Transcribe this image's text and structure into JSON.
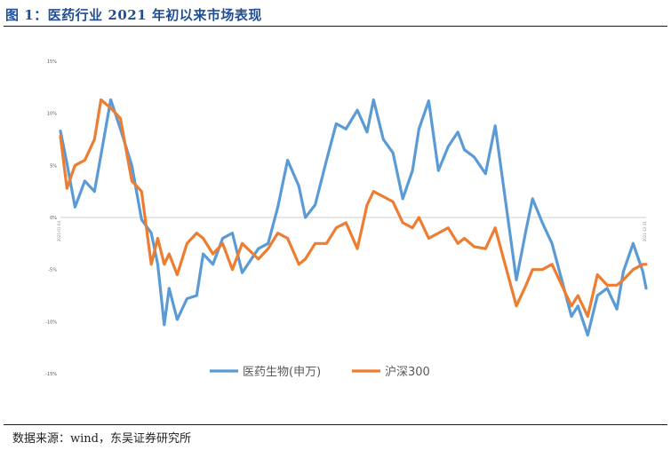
{
  "header": {
    "title": "图 1：医药行业 2021 年初以来市场表现"
  },
  "footer": {
    "source": "数据来源：wind，东吴证券研究所"
  },
  "chart_data": {
    "type": "line",
    "title": "",
    "xlabel": "",
    "ylabel": "",
    "ylim": [
      -0.15,
      0.15
    ],
    "y_ticks": [
      "15%",
      "10%",
      "5%",
      "0%",
      "-5%",
      "-10%",
      "-15%"
    ],
    "y_tick_values": [
      0.15,
      0.1,
      0.05,
      0.0,
      -0.05,
      -0.1,
      -0.15
    ],
    "x_range": [
      "2021-01-04",
      "2021-12-31"
    ],
    "x_tick_labels": [
      "2021-01-04",
      "2021-12-31"
    ],
    "grid": false,
    "legend_position": "bottom",
    "colors": {
      "series1": "#5b9bd5",
      "series2": "#ed7d31"
    },
    "series": [
      {
        "name": "医药生物(申万)",
        "x": [
          "2021-01-04",
          "2021-01-08",
          "2021-01-13",
          "2021-01-19",
          "2021-01-25",
          "2021-01-29",
          "2021-02-04",
          "2021-02-10",
          "2021-02-17",
          "2021-02-23",
          "2021-03-01",
          "2021-03-05",
          "2021-03-09",
          "2021-03-12",
          "2021-03-17",
          "2021-03-23",
          "2021-03-29",
          "2021-04-02",
          "2021-04-08",
          "2021-04-14",
          "2021-04-20",
          "2021-04-26",
          "2021-05-06",
          "2021-05-12",
          "2021-05-18",
          "2021-05-24",
          "2021-05-31",
          "2021-06-04",
          "2021-06-10",
          "2021-06-17",
          "2021-06-23",
          "2021-06-29",
          "2021-07-06",
          "2021-07-12",
          "2021-07-16",
          "2021-07-22",
          "2021-07-28",
          "2021-08-03",
          "2021-08-09",
          "2021-08-13",
          "2021-08-19",
          "2021-08-25",
          "2021-08-31",
          "2021-09-06",
          "2021-09-10",
          "2021-09-16",
          "2021-09-23",
          "2021-09-29",
          "2021-10-12",
          "2021-10-18",
          "2021-10-22",
          "2021-10-28",
          "2021-11-03",
          "2021-11-09",
          "2021-11-15",
          "2021-11-19",
          "2021-11-25",
          "2021-12-01",
          "2021-12-07",
          "2021-12-13",
          "2021-12-17",
          "2021-12-23",
          "2021-12-29",
          "2021-12-31"
        ],
        "values": [
          0.083,
          0.052,
          0.01,
          0.035,
          0.025,
          0.06,
          0.113,
          0.085,
          0.05,
          -0.002,
          -0.015,
          -0.045,
          -0.103,
          -0.068,
          -0.098,
          -0.078,
          -0.075,
          -0.035,
          -0.045,
          -0.02,
          -0.015,
          -0.053,
          -0.03,
          -0.025,
          0.01,
          0.055,
          0.03,
          0.0,
          0.012,
          0.055,
          0.09,
          0.085,
          0.103,
          0.082,
          0.113,
          0.075,
          0.062,
          0.018,
          0.045,
          0.085,
          0.112,
          0.045,
          0.068,
          0.082,
          0.065,
          0.058,
          0.042,
          0.088,
          -0.06,
          -0.012,
          0.018,
          -0.005,
          -0.025,
          -0.06,
          -0.095,
          -0.085,
          -0.113,
          -0.075,
          -0.068,
          -0.088,
          -0.052,
          -0.025,
          -0.052,
          -0.068
        ]
      },
      {
        "name": "沪深300",
        "x": [
          "2021-01-04",
          "2021-01-08",
          "2021-01-13",
          "2021-01-19",
          "2021-01-25",
          "2021-01-29",
          "2021-02-04",
          "2021-02-10",
          "2021-02-17",
          "2021-02-23",
          "2021-03-01",
          "2021-03-05",
          "2021-03-09",
          "2021-03-12",
          "2021-03-17",
          "2021-03-23",
          "2021-03-29",
          "2021-04-02",
          "2021-04-08",
          "2021-04-14",
          "2021-04-20",
          "2021-04-26",
          "2021-05-06",
          "2021-05-12",
          "2021-05-18",
          "2021-05-24",
          "2021-05-31",
          "2021-06-04",
          "2021-06-10",
          "2021-06-17",
          "2021-06-23",
          "2021-06-29",
          "2021-07-06",
          "2021-07-12",
          "2021-07-16",
          "2021-07-22",
          "2021-07-28",
          "2021-08-03",
          "2021-08-09",
          "2021-08-13",
          "2021-08-19",
          "2021-08-25",
          "2021-08-31",
          "2021-09-06",
          "2021-09-10",
          "2021-09-16",
          "2021-09-23",
          "2021-09-29",
          "2021-10-12",
          "2021-10-18",
          "2021-10-22",
          "2021-10-28",
          "2021-11-03",
          "2021-11-09",
          "2021-11-15",
          "2021-11-19",
          "2021-11-25",
          "2021-12-01",
          "2021-12-07",
          "2021-12-13",
          "2021-12-17",
          "2021-12-23",
          "2021-12-29",
          "2021-12-31"
        ],
        "values": [
          0.078,
          0.028,
          0.05,
          0.055,
          0.075,
          0.113,
          0.105,
          0.095,
          0.035,
          0.025,
          -0.045,
          -0.02,
          -0.045,
          -0.035,
          -0.055,
          -0.025,
          -0.015,
          -0.02,
          -0.035,
          -0.025,
          -0.05,
          -0.025,
          -0.04,
          -0.03,
          -0.015,
          -0.02,
          -0.045,
          -0.04,
          -0.025,
          -0.025,
          -0.01,
          -0.005,
          -0.03,
          0.012,
          0.025,
          0.02,
          0.015,
          -0.005,
          -0.01,
          0.0,
          -0.02,
          -0.015,
          -0.01,
          -0.025,
          -0.02,
          -0.028,
          -0.03,
          -0.01,
          -0.085,
          -0.065,
          -0.05,
          -0.05,
          -0.045,
          -0.065,
          -0.085,
          -0.075,
          -0.095,
          -0.055,
          -0.065,
          -0.065,
          -0.06,
          -0.05,
          -0.045,
          -0.045
        ]
      }
    ]
  }
}
